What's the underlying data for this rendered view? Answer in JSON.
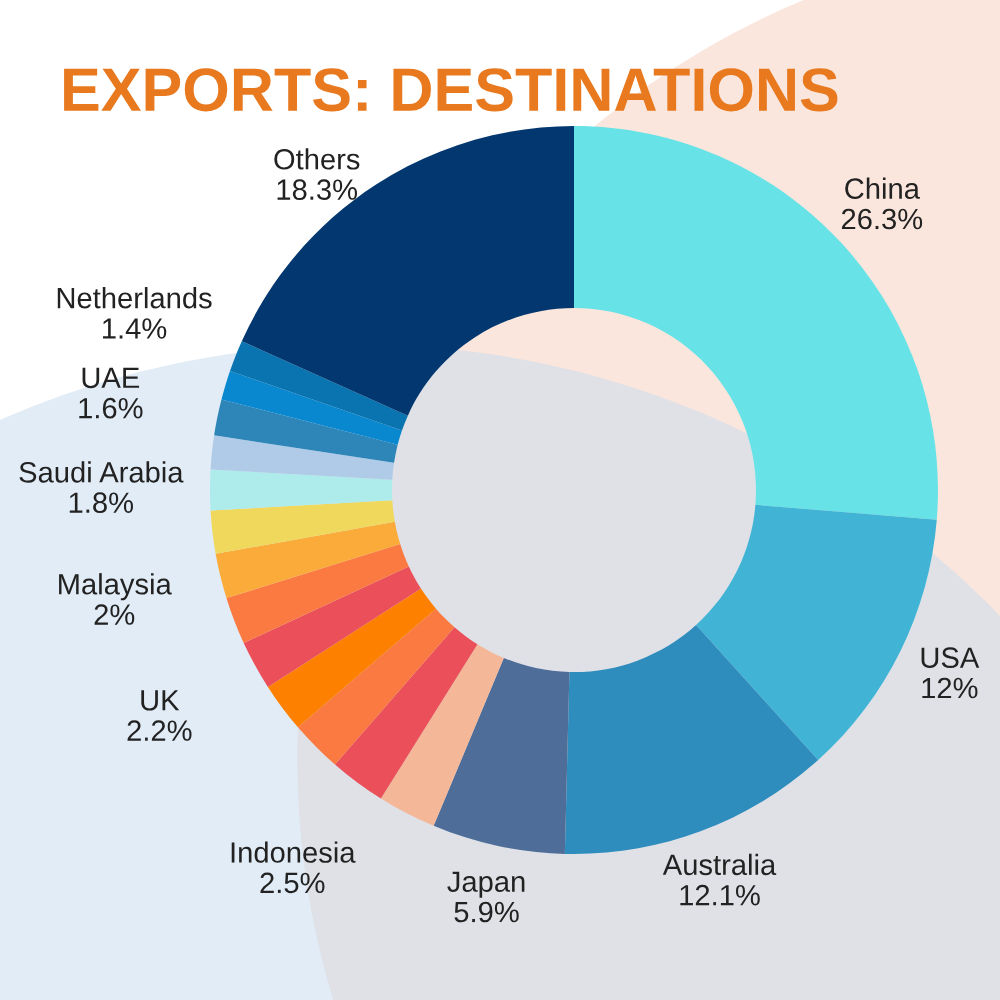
{
  "chart_data": {
    "type": "donut",
    "title": "EXPORTS: DESTINATIONS",
    "categories": [
      "China",
      "USA",
      "Australia",
      "Japan",
      null,
      "Indonesia",
      null,
      null,
      "UK",
      null,
      "Malaysia",
      null,
      "Saudi Arabia",
      null,
      "UAE",
      null,
      "Netherlands",
      "Others"
    ],
    "values": [
      26.3,
      12,
      12.1,
      5.9,
      2.6,
      2.5,
      2.3,
      2.2,
      2.2,
      2.1,
      2,
      1.9,
      1.8,
      1.5,
      1.6,
      1.3,
      1.4,
      18.3
    ],
    "value_labels": [
      "26.3%",
      "12%",
      "12.1%",
      "5.9%",
      null,
      "2.5%",
      null,
      null,
      "2.2%",
      null,
      "2%",
      null,
      "1.8%",
      null,
      "1.6%",
      null,
      "1.4%",
      "18.3%"
    ],
    "colors": [
      "#67e3e8",
      "#41b4d6",
      "#2e8dbd",
      "#4e6d98",
      "#f4b899",
      "#ea4f5a",
      "#fa7a42",
      "#fd8000",
      "#ea4f5a",
      "#fa7a42",
      "#fbab3a",
      "#f0d85c",
      "#aeebeb",
      "#b0cbe8",
      "#2e86b8",
      "#0a88cf",
      "#0a74b0",
      "#03376f"
    ]
  }
}
